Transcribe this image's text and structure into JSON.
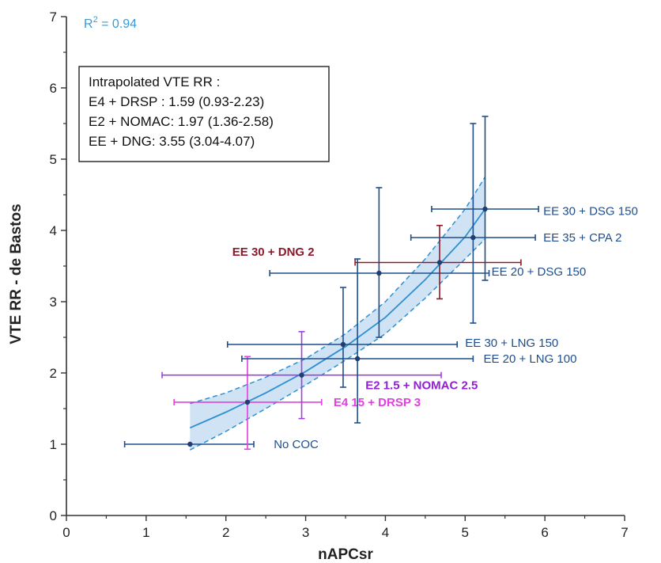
{
  "chart_data": {
    "type": "scatter",
    "xlabel": "nAPCsr",
    "ylabel": "VTE RR - de Bastos",
    "xlim": [
      0,
      7
    ],
    "ylim": [
      0,
      7
    ],
    "xticks": [
      "0",
      "1",
      "2",
      "3",
      "4",
      "5",
      "6",
      "7"
    ],
    "yticks": [
      "0",
      "1",
      "2",
      "3",
      "4",
      "5",
      "6",
      "7"
    ],
    "r2_prefix": "R",
    "r2_sup": "2",
    "r2_value": " = 0.94",
    "textbox": {
      "line1": "Intrapolated VTE RR :",
      "line2": "E4 + DRSP : 1.59 (0.93-2.23)",
      "line3": "E2 + NOMAC: 1.97 (1.36-2.58)",
      "line4": "EE + DNG: 3.55 (3.04-4.07)"
    },
    "fit_curve": [
      {
        "x": 1.55,
        "y": 1.23
      },
      {
        "x": 2.0,
        "y": 1.45
      },
      {
        "x": 2.5,
        "y": 1.72
      },
      {
        "x": 3.0,
        "y": 2.02
      },
      {
        "x": 3.5,
        "y": 2.37
      },
      {
        "x": 4.0,
        "y": 2.78
      },
      {
        "x": 4.5,
        "y": 3.31
      },
      {
        "x": 5.0,
        "y": 3.91
      },
      {
        "x": 5.25,
        "y": 4.3
      }
    ],
    "ci_upper": [
      {
        "x": 1.55,
        "y": 1.57
      },
      {
        "x": 2.0,
        "y": 1.72
      },
      {
        "x": 2.5,
        "y": 1.94
      },
      {
        "x": 3.0,
        "y": 2.2
      },
      {
        "x": 3.5,
        "y": 2.55
      },
      {
        "x": 4.0,
        "y": 3.0
      },
      {
        "x": 4.5,
        "y": 3.6
      },
      {
        "x": 5.0,
        "y": 4.3
      },
      {
        "x": 5.25,
        "y": 4.75
      }
    ],
    "ci_lower": [
      {
        "x": 1.55,
        "y": 0.92
      },
      {
        "x": 2.0,
        "y": 1.18
      },
      {
        "x": 2.5,
        "y": 1.5
      },
      {
        "x": 3.0,
        "y": 1.83
      },
      {
        "x": 3.5,
        "y": 2.18
      },
      {
        "x": 4.0,
        "y": 2.55
      },
      {
        "x": 4.5,
        "y": 3.05
      },
      {
        "x": 5.0,
        "y": 3.6
      },
      {
        "x": 5.25,
        "y": 3.88
      }
    ],
    "points": [
      {
        "label": "No COC",
        "x": 1.55,
        "y": 1.0,
        "xerr": [
          0.73,
          2.35
        ],
        "yerr": null,
        "color": "#1f4e8c",
        "label_color": "#1f4e8c",
        "label_bold": false,
        "label_pos": {
          "x": 2.6,
          "y": 1.0
        }
      },
      {
        "label": "E4 15 + DRSP 3",
        "x": 2.27,
        "y": 1.59,
        "xerr": [
          1.35,
          3.2
        ],
        "yerr": [
          0.93,
          2.23
        ],
        "color": "#e040e0",
        "label_color": "#e040e0",
        "label_bold": true,
        "label_pos": {
          "x": 3.35,
          "y": 1.59
        }
      },
      {
        "label": "E2 1.5 + NOMAC 2.5",
        "x": 2.95,
        "y": 1.97,
        "xerr": [
          1.2,
          4.7
        ],
        "yerr": [
          1.36,
          2.58
        ],
        "color": "#a040e0",
        "label_color": "#9020d0",
        "label_bold": true,
        "label_pos": {
          "x": 3.75,
          "y": 1.83
        }
      },
      {
        "label": "EE 20 + LNG 100",
        "x": 3.65,
        "y": 2.2,
        "xerr": [
          2.2,
          5.1
        ],
        "yerr": [
          1.3,
          3.6
        ],
        "color": "#1f4e8c",
        "label_color": "#1f4e8c",
        "label_bold": false,
        "label_pos": {
          "x": 5.23,
          "y": 2.2
        }
      },
      {
        "label": "EE 30 + LNG 150",
        "x": 3.47,
        "y": 2.4,
        "xerr": [
          2.02,
          4.9
        ],
        "yerr": [
          1.8,
          3.2
        ],
        "color": "#1f4e8c",
        "label_color": "#1f4e8c",
        "label_bold": false,
        "label_pos": {
          "x": 5.0,
          "y": 2.42
        }
      },
      {
        "label": "EE 20 + DSG 150",
        "x": 3.92,
        "y": 3.4,
        "xerr": [
          2.55,
          5.3
        ],
        "yerr": [
          2.5,
          4.6
        ],
        "color": "#1f4e8c",
        "label_color": "#1f4e8c",
        "label_bold": false,
        "label_pos": {
          "x": 5.33,
          "y": 3.42
        }
      },
      {
        "label": "EE 30 + DNG 2",
        "x": 4.68,
        "y": 3.55,
        "xerr": [
          3.62,
          5.7
        ],
        "yerr": [
          3.04,
          4.07
        ],
        "color": "#8b1a2a",
        "label_color": "#8b1a2a",
        "label_bold": true,
        "label_pos": {
          "x": 2.08,
          "y": 3.7
        }
      },
      {
        "label": "EE 35 + CPA 2",
        "x": 5.1,
        "y": 3.9,
        "xerr": [
          4.32,
          5.88
        ],
        "yerr": [
          2.7,
          5.5
        ],
        "color": "#1f4e8c",
        "label_color": "#1f4e8c",
        "label_bold": false,
        "label_pos": {
          "x": 5.98,
          "y": 3.9
        }
      },
      {
        "label": "EE 30 + DSG 150",
        "x": 5.25,
        "y": 4.3,
        "xerr": [
          4.58,
          5.92
        ],
        "yerr": [
          3.3,
          5.6
        ],
        "color": "#1f4e8c",
        "label_color": "#1f4e8c",
        "label_bold": false,
        "label_pos": {
          "x": 5.98,
          "y": 4.27
        }
      }
    ],
    "colors": {
      "axis": "#333333",
      "fit": "#2d8fd0",
      "band": "#cfe3f5",
      "band_edge": "#2d8fd0",
      "r2": "#3a9ad8"
    }
  }
}
